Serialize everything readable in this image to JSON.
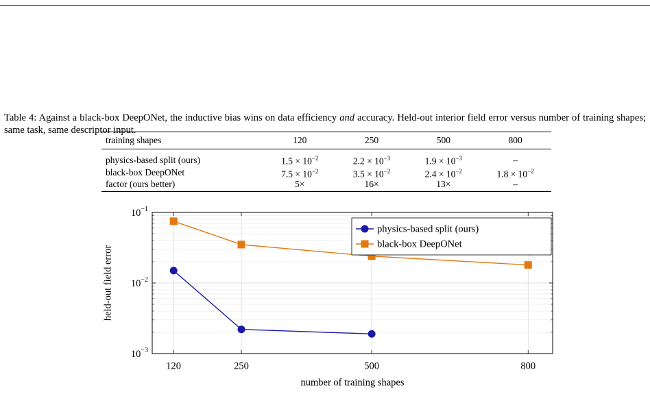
{
  "caption": {
    "label": "Table 4:",
    "before": "Against a black-box DeepONet, the inductive bias wins on data efficiency",
    "emphasis": "and",
    "after": "accuracy. Held-out interior field error versus number of training shapes; same task, same descriptor input."
  },
  "table": {
    "header": [
      "training shapes",
      "120",
      "250",
      "500",
      "800"
    ],
    "rows": [
      [
        "physics-based split (ours)",
        {
          "base": "1.5 × 10",
          "exp": "−2"
        },
        {
          "base": "2.2 × 10",
          "exp": "−3"
        },
        {
          "base": "1.9 × 10",
          "exp": "−3"
        },
        "–"
      ],
      [
        "black-box DeepONet",
        {
          "base": "7.5 × 10",
          "exp": "−2"
        },
        {
          "base": "3.5 × 10",
          "exp": "−2"
        },
        {
          "base": "2.4 × 10",
          "exp": "−2"
        },
        {
          "base": "1.8 × 10",
          "exp": "−2"
        }
      ],
      [
        "factor (ours better)",
        "5×",
        "16×",
        "13×",
        "–"
      ]
    ]
  },
  "chart_data": {
    "type": "line",
    "xlabel": "number of training shapes",
    "ylabel": "held-out field error",
    "x": [
      120,
      250,
      500,
      800
    ],
    "xlim": [
      79,
      847
    ],
    "xticks": [
      120,
      250,
      500,
      800
    ],
    "ylim": [
      0.001,
      0.1
    ],
    "log_y": true,
    "grid": true,
    "yticks": [
      {
        "value": 0.001,
        "label": {
          "base": "10",
          "exp": "−3"
        }
      },
      {
        "value": 0.01,
        "label": {
          "base": "10",
          "exp": "−2"
        }
      },
      {
        "value": 0.1,
        "label": {
          "base": "10",
          "exp": "−1"
        }
      }
    ],
    "y_minor_ticks": [
      0.002,
      0.003,
      0.004,
      0.005,
      0.006,
      0.007,
      0.008,
      0.009,
      0.02,
      0.03,
      0.04,
      0.05,
      0.06,
      0.07,
      0.08,
      0.09
    ],
    "legend": "top-right",
    "series": [
      {
        "name": "physics-based split (ours)",
        "color": "#1a1aa6",
        "marker": "circle",
        "values": [
          0.015,
          0.0022,
          0.0019,
          null
        ]
      },
      {
        "name": "black-box DeepONet",
        "color": "#e07a10",
        "marker": "square",
        "values": [
          0.075,
          0.035,
          0.024,
          0.018
        ]
      }
    ]
  }
}
